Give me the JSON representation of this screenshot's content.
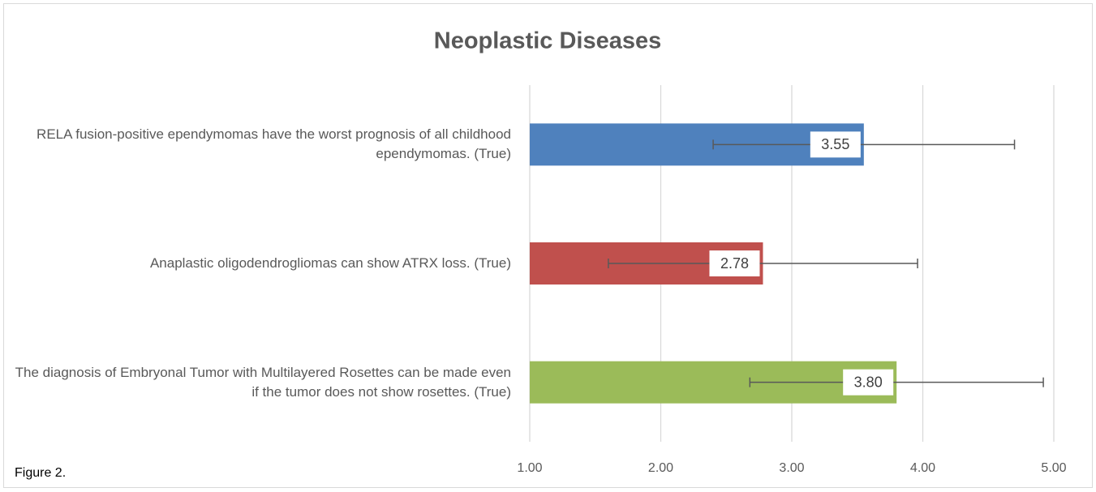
{
  "chart_data": {
    "type": "hbar",
    "title": "Neoplastic Diseases",
    "annotation": "Figure 2.",
    "categories": [
      "RELA fusion-positive ependymomas have the worst prognosis of all childhood ependymomas. (True)",
      "Anaplastic oligodendrogliomas can show ATRX loss. (True)",
      "The diagnosis of Embryonal Tumor with Multilayered Rosettes can be made even if the tumor does not show rosettes. (True)"
    ],
    "values": [
      3.55,
      2.78,
      3.8
    ],
    "value_labels": [
      "3.55",
      "2.78",
      "3.80"
    ],
    "errors": [
      1.15,
      1.18,
      1.12
    ],
    "colors": [
      "#4f81bd",
      "#c0504d",
      "#9bbb59"
    ],
    "xlim": [
      1,
      5
    ],
    "xticks": [
      {
        "value": 1,
        "label": "1.00"
      },
      {
        "value": 2,
        "label": "2.00"
      },
      {
        "value": 3,
        "label": "3.00"
      },
      {
        "value": 4,
        "label": "4.00"
      },
      {
        "value": 5,
        "label": "5.00"
      }
    ],
    "grid": true
  }
}
